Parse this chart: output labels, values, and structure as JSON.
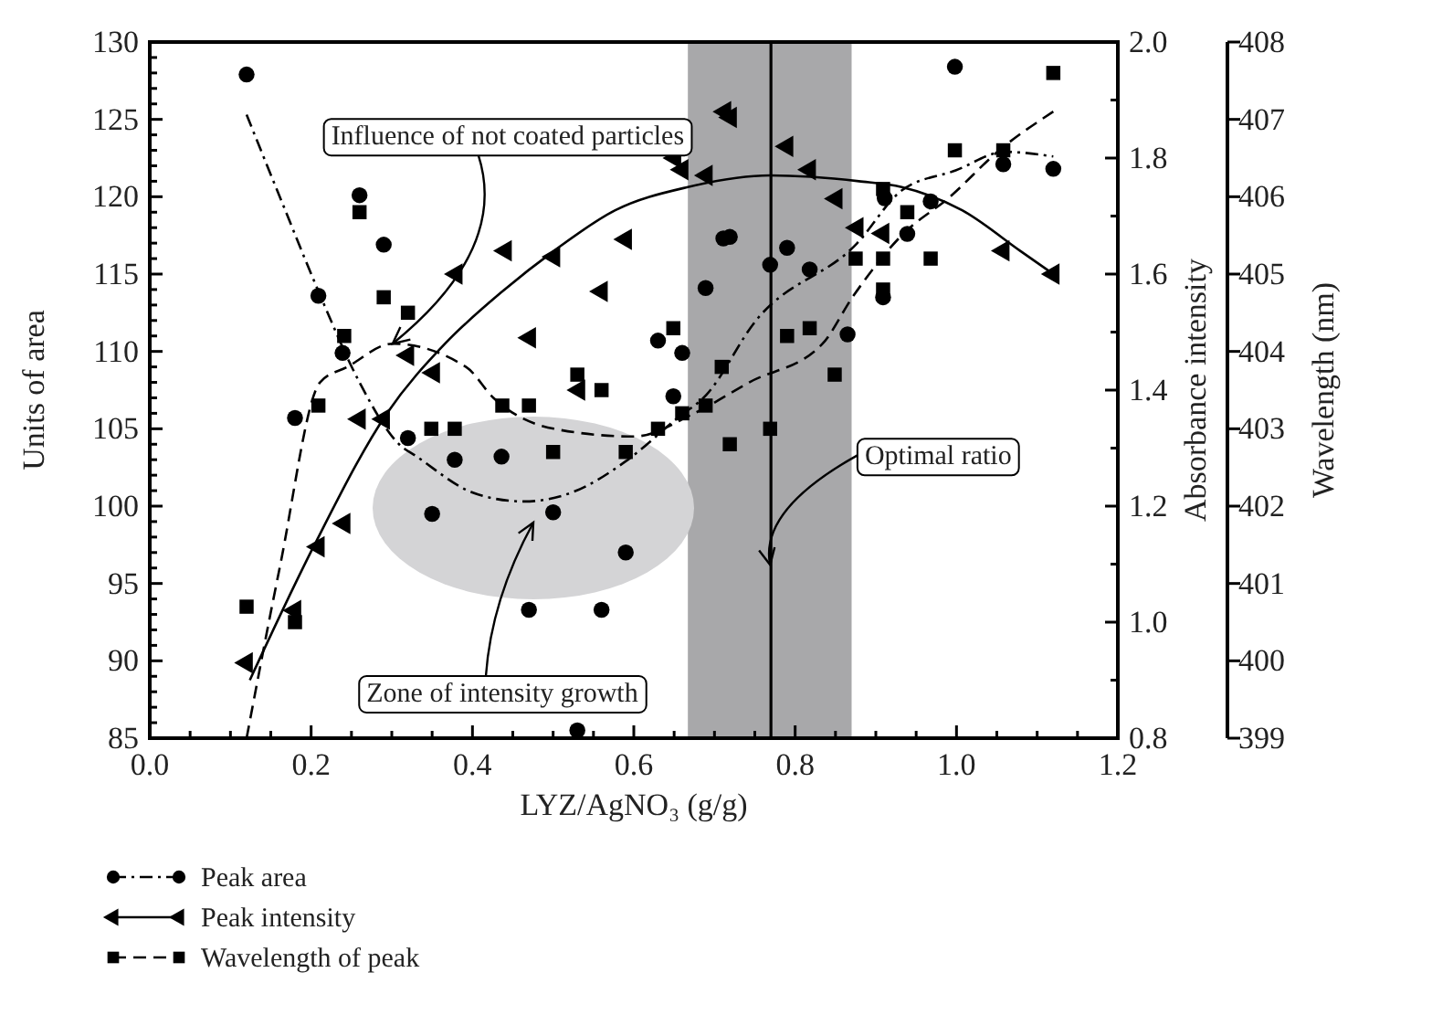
{
  "chart_data": {
    "type": "scatter",
    "xlabel": "LYZ/AgNO₃ (g/g)",
    "ylabel": "Units of area",
    "y2label": "Absorbance intensity",
    "y3label": "Wavelength (nm)",
    "xlim": [
      0,
      1.2
    ],
    "xticks": [
      {
        "value": 0,
        "label": "0.0"
      },
      {
        "value": 0.05,
        "label": null
      },
      {
        "value": 0.1,
        "label": null
      },
      {
        "value": 0.15,
        "label": null
      },
      {
        "value": 0.2,
        "label": "0.2"
      },
      {
        "value": 0.25,
        "label": null
      },
      {
        "value": 0.3,
        "label": null
      },
      {
        "value": 0.35,
        "label": null
      },
      {
        "value": 0.4,
        "label": "0.4"
      },
      {
        "value": 0.45,
        "label": null
      },
      {
        "value": 0.5,
        "label": null
      },
      {
        "value": 0.55,
        "label": null
      },
      {
        "value": 0.6,
        "label": "0.6"
      },
      {
        "value": 0.65,
        "label": null
      },
      {
        "value": 0.7,
        "label": null
      },
      {
        "value": 0.75,
        "label": null
      },
      {
        "value": 0.8,
        "label": "0.8"
      },
      {
        "value": 0.85,
        "label": null
      },
      {
        "value": 0.9,
        "label": null
      },
      {
        "value": 0.95,
        "label": null
      },
      {
        "value": 1,
        "label": "1.0"
      },
      {
        "value": 1.05,
        "label": null
      },
      {
        "value": 1.1,
        "label": null
      },
      {
        "value": 1.15,
        "label": null
      },
      {
        "value": 1.2,
        "label": "1.2"
      }
    ],
    "ylim": [
      85,
      130
    ],
    "yticks": [
      85,
      {
        "value": 86,
        "label": null
      },
      {
        "value": 87,
        "label": null
      },
      {
        "value": 88,
        "label": null
      },
      {
        "value": 89,
        "label": null
      },
      90,
      {
        "value": 91,
        "label": null
      },
      {
        "value": 92,
        "label": null
      },
      {
        "value": 93,
        "label": null
      },
      {
        "value": 94,
        "label": null
      },
      95,
      {
        "value": 96,
        "label": null
      },
      {
        "value": 97,
        "label": null
      },
      {
        "value": 98,
        "label": null
      },
      {
        "value": 99,
        "label": null
      },
      100,
      {
        "value": 101,
        "label": null
      },
      {
        "value": 102,
        "label": null
      },
      {
        "value": 103,
        "label": null
      },
      {
        "value": 104,
        "label": null
      },
      105,
      {
        "value": 106,
        "label": null
      },
      {
        "value": 107,
        "label": null
      },
      {
        "value": 108,
        "label": null
      },
      {
        "value": 109,
        "label": null
      },
      110,
      {
        "value": 111,
        "label": null
      },
      {
        "value": 112,
        "label": null
      },
      {
        "value": 113,
        "label": null
      },
      {
        "value": 114,
        "label": null
      },
      115,
      {
        "value": 116,
        "label": null
      },
      {
        "value": 117,
        "label": null
      },
      {
        "value": 118,
        "label": null
      },
      {
        "value": 119,
        "label": null
      },
      120,
      {
        "value": 121,
        "label": null
      },
      {
        "value": 122,
        "label": null
      },
      {
        "value": 123,
        "label": null
      },
      {
        "value": 124,
        "label": null
      },
      125,
      {
        "value": 126,
        "label": null
      },
      {
        "value": 127,
        "label": null
      },
      {
        "value": 128,
        "label": null
      },
      {
        "value": 129,
        "label": null
      },
      130
    ],
    "y2lim": [
      0.8,
      2.0
    ],
    "y2ticks": [
      {
        "value": 0.8,
        "label": "0.8"
      },
      {
        "value": 0.9,
        "label": null
      },
      {
        "value": 1,
        "label": "1.0"
      },
      {
        "value": 1.1,
        "label": null
      },
      {
        "value": 1.2,
        "label": "1.2"
      },
      {
        "value": 1.3,
        "label": null
      },
      {
        "value": 1.4,
        "label": "1.4"
      },
      {
        "value": 1.5,
        "label": null
      },
      {
        "value": 1.6,
        "label": "1.6"
      },
      {
        "value": 1.7,
        "label": null
      },
      {
        "value": 1.8,
        "label": "1.8"
      },
      {
        "value": 1.9,
        "label": null
      },
      {
        "value": 2,
        "label": "2.0"
      }
    ],
    "y3lim": [
      399,
      408
    ],
    "y3ticks": [
      399,
      400,
      401,
      402,
      403,
      404,
      405,
      406,
      407,
      408
    ],
    "grid": false,
    "legend": "bottom left",
    "series": [
      {
        "name": "Peak area",
        "marker": "circle",
        "line_style": "dashdot",
        "color": "#000000",
        "x": [
          0.12,
          0.18,
          0.209,
          0.239,
          0.26,
          0.29,
          0.32,
          0.35,
          0.378,
          0.436,
          0.47,
          0.5,
          0.53,
          0.56,
          0.59,
          0.63,
          0.649,
          0.66,
          0.689,
          0.711,
          0.719,
          0.769,
          0.79,
          0.818,
          0.865,
          0.909,
          0.911,
          0.939,
          0.968,
          0.998,
          1.058,
          1.12
        ],
        "values": [
          127.9,
          105.7,
          113.6,
          109.9,
          120.1,
          116.9,
          104.4,
          99.5,
          103.0,
          103.2,
          93.3,
          99.6,
          85.5,
          93.3,
          97.0,
          110.7,
          107.1,
          109.9,
          114.1,
          117.3,
          117.4,
          115.6,
          116.7,
          115.3,
          111.1,
          113.5,
          119.9,
          117.6,
          119.7,
          128.4,
          122.1,
          121.8
        ]
      },
      {
        "name": "Peak intensity",
        "axis": "y2",
        "marker": "triangle",
        "line_style": "solid",
        "color": "#000000",
        "x": [
          0.12,
          0.18,
          0.209,
          0.241,
          0.26,
          0.29,
          0.32,
          0.352,
          0.38,
          0.441,
          0.471,
          0.501,
          0.532,
          0.56,
          0.59,
          0.651,
          0.66,
          0.69,
          0.713,
          0.72,
          0.79,
          0.818,
          0.851,
          0.877,
          0.909,
          1.058,
          1.12
        ],
        "values": [
          0.93,
          1.02,
          1.13,
          1.17,
          1.35,
          1.35,
          1.46,
          1.43,
          1.6,
          1.64,
          1.49,
          1.63,
          1.4,
          1.57,
          1.66,
          1.8,
          1.78,
          1.77,
          1.88,
          1.87,
          1.82,
          1.78,
          1.73,
          1.68,
          1.67,
          1.64,
          1.6
        ]
      },
      {
        "name": "Wavelength of peak",
        "axis": "y3",
        "marker": "square",
        "line_style": "dashed",
        "color": "#000000",
        "x": [
          0.12,
          0.18,
          0.209,
          0.241,
          0.26,
          0.29,
          0.32,
          0.349,
          0.378,
          0.437,
          0.47,
          0.5,
          0.53,
          0.56,
          0.59,
          0.63,
          0.649,
          0.66,
          0.689,
          0.709,
          0.719,
          0.769,
          0.79,
          0.818,
          0.849,
          0.875,
          0.909,
          0.909,
          0.909,
          0.939,
          0.968,
          0.998,
          1.058,
          1.12
        ],
        "values": [
          400.7,
          400.5,
          403.3,
          404.2,
          405.8,
          404.7,
          404.5,
          403.0,
          403.0,
          403.3,
          403.3,
          402.7,
          403.7,
          403.5,
          402.7,
          403.0,
          404.3,
          403.2,
          403.3,
          403.8,
          402.8,
          403.0,
          404.2,
          404.3,
          403.7,
          405.2,
          405.2,
          404.8,
          406.1,
          405.8,
          405.2,
          406.6,
          406.6,
          407.6
        ]
      },
      {
        "type": "line",
        "line_style": "dashdot",
        "marker": "none",
        "color": "#000000",
        "x": [
          0.12,
          0.165,
          0.209,
          0.26,
          0.309,
          0.331,
          0.399,
          0.426,
          0.464,
          0.524,
          0.59,
          0.652,
          0.69,
          0.75,
          0.877,
          0.932,
          0.999,
          1.06,
          1.12
        ],
        "values": [
          125.3,
          119.5,
          113.9,
          108.0,
          104.0,
          103.2,
          100.9,
          100.5,
          100.3,
          100.9,
          102.9,
          105.6,
          107.2,
          111.9,
          117.0,
          120.4,
          121.7,
          122.9,
          122.6
        ]
      },
      {
        "type": "line",
        "axis": "y2",
        "line_style": "solid",
        "marker": "none",
        "color": "#000000",
        "x": [
          0.124,
          0.203,
          0.294,
          0.366,
          0.437,
          0.501,
          0.577,
          0.667,
          0.769,
          0.879,
          0.932,
          1.007,
          1.079,
          1.12
        ],
        "values": [
          0.9,
          1.13,
          1.36,
          1.48,
          1.57,
          1.64,
          1.71,
          1.75,
          1.77,
          1.76,
          1.75,
          1.71,
          1.64,
          1.6
        ]
      },
      {
        "type": "line",
        "axis": "y3",
        "line_style": "dashed",
        "marker": "none",
        "color": "#000000",
        "x": [
          0.12,
          0.161,
          0.211,
          0.245,
          0.301,
          0.392,
          0.426,
          0.501,
          0.6,
          0.675,
          0.743,
          0.834,
          0.871,
          0.932,
          0.992,
          1.053,
          1.12
        ],
        "values": [
          399.0,
          401.2,
          403.6,
          403.8,
          404.1,
          403.8,
          403.4,
          403.0,
          402.9,
          403.2,
          403.6,
          404.1,
          404.7,
          405.5,
          406.0,
          406.6,
          407.1
        ]
      }
    ],
    "ref_lines": [
      {
        "axis": "x",
        "value": 0.77,
        "color": "#000000",
        "line_style": "solid"
      }
    ],
    "bands": [
      {
        "axis": "x",
        "from": 0.667,
        "to": 0.87,
        "color": "#a8a8aa"
      }
    ],
    "annotations": [
      {
        "text": "Influence of not coated particles",
        "x": 0.301,
        "y": 110.5
      },
      "Zone of intensity growth",
      {
        "text": "Optimal ratio",
        "x": 0.769,
        "y": 96.2
      }
    ]
  }
}
